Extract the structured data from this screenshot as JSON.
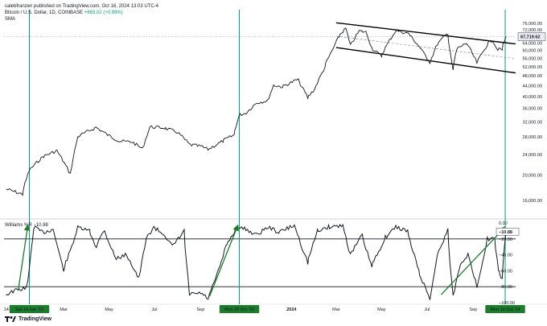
{
  "header": {
    "publisher_line": "calebfranzen published on TradingView.com, Oct 16, 2024 13:03 UTC-4",
    "symbol": "Bitcoin / U.S. Dollar, 1D, COINBASE",
    "change": "+663.02 (+0.99%)",
    "indicator": "SMA"
  },
  "williams": {
    "label": "Williams %R",
    "value": "−10.88"
  },
  "brand": "TradingView",
  "colors": {
    "price_line": "#131722",
    "channel": "#000000",
    "vline": "#089981",
    "arrow": "#1b7d2b",
    "badge_bg": "#1b7d2b",
    "price_badge_bg": "#e8eaf0"
  },
  "chart_data": [
    {
      "type": "line",
      "title": "Bitcoin / U.S. Dollar, 1D, COINBASE",
      "scale": "log",
      "ylim": [
        14000,
        80000
      ],
      "y_ticks": [
        "76,000.00",
        "72,000.00",
        "68,000.00",
        "64,000.00",
        "60,000.00",
        "56,000.00",
        "52,000.00",
        "48,000.00",
        "44,000.00",
        "40,000.00",
        "36,000.00",
        "32,000.00",
        "28,000.00",
        "24,000.00",
        "20,000.00",
        "16,000.00"
      ],
      "x_ticks": [
        "14",
        "Sat 14 Jan '23",
        "Mar",
        "May",
        "Jul",
        "Sep",
        "Mon 23 Oct '23",
        "2024",
        "Mar",
        "May",
        "Jul",
        "Sep",
        "Mon 14 Oct '24"
      ],
      "last_price": "67,719.62",
      "series": [
        {
          "x": [
            "2022-12-14",
            "2023-01-05",
            "2023-01-14",
            "2023-02-01",
            "2023-02-20",
            "2023-03-10",
            "2023-03-20",
            "2023-04-14",
            "2023-05-01",
            "2023-05-15",
            "2023-06-01",
            "2023-06-15",
            "2023-06-25",
            "2023-07-15",
            "2023-08-01",
            "2023-08-17",
            "2023-09-01",
            "2023-09-11",
            "2023-10-01",
            "2023-10-16",
            "2023-10-23",
            "2023-11-01",
            "2023-11-15",
            "2023-12-01",
            "2023-12-08",
            "2023-12-20",
            "2024-01-10",
            "2024-01-23",
            "2024-02-01",
            "2024-02-15",
            "2024-02-28",
            "2024-03-05",
            "2024-03-14",
            "2024-03-20",
            "2024-04-01",
            "2024-04-10",
            "2024-04-18",
            "2024-05-01",
            "2024-05-20",
            "2024-06-07",
            "2024-06-24",
            "2024-07-05",
            "2024-07-15",
            "2024-07-29",
            "2024-08-05",
            "2024-08-10",
            "2024-08-23",
            "2024-09-06",
            "2024-09-20",
            "2024-09-27",
            "2024-10-03",
            "2024-10-10",
            "2024-10-15"
          ],
          "values": [
            17700,
            16900,
            20900,
            23500,
            24800,
            20200,
            28000,
            30500,
            28300,
            27000,
            26800,
            25200,
            30600,
            30300,
            29200,
            26200,
            25800,
            25100,
            27000,
            28500,
            33900,
            34600,
            37800,
            38600,
            44100,
            43500,
            46500,
            39500,
            42600,
            51800,
            62500,
            68000,
            72800,
            62500,
            71200,
            70500,
            61300,
            57000,
            71400,
            69500,
            60300,
            54100,
            63500,
            69900,
            49800,
            60500,
            64000,
            53800,
            63100,
            65800,
            60800,
            60300,
            67719
          ]
        }
      ],
      "annotations": {
        "channel": "descending parallel channel (2024)",
        "sma": "dashed",
        "markers": [
          "Sat 14 Jan '23",
          "Mon 23 Oct '23",
          "Mon 14 Oct '24"
        ]
      }
    },
    {
      "type": "line",
      "title": "Williams %R",
      "ylim": [
        -100,
        0
      ],
      "y_ticks": [
        "0.00",
        "−20.00",
        "−40.00",
        "−60.00",
        "−80.00",
        "−100.00"
      ],
      "hlines": [
        -20,
        -80
      ],
      "current": "−10.88",
      "series": [
        {
          "x": [
            "2022-12-14",
            "2022-12-25",
            "2023-01-08",
            "2023-01-12",
            "2023-01-20",
            "2023-02-01",
            "2023-02-15",
            "2023-03-01",
            "2023-03-10",
            "2023-03-20",
            "2023-04-05",
            "2023-04-14",
            "2023-04-25",
            "2023-05-10",
            "2023-05-25",
            "2023-06-10",
            "2023-06-20",
            "2023-06-30",
            "2023-07-15",
            "2023-07-25",
            "2023-08-10",
            "2023-08-17",
            "2023-09-01",
            "2023-09-11",
            "2023-09-25",
            "2023-10-05",
            "2023-10-20",
            "2023-11-01",
            "2023-11-15",
            "2023-12-01",
            "2023-12-15",
            "2024-01-05",
            "2024-01-15",
            "2024-01-23",
            "2024-02-05",
            "2024-02-20",
            "2024-03-10",
            "2024-03-20",
            "2024-04-05",
            "2024-04-18",
            "2024-05-05",
            "2024-05-20",
            "2024-06-05",
            "2024-06-20",
            "2024-07-05",
            "2024-07-15",
            "2024-07-29",
            "2024-08-05",
            "2024-08-15",
            "2024-08-25",
            "2024-09-06",
            "2024-09-20",
            "2024-09-30",
            "2024-10-05",
            "2024-10-10",
            "2024-10-15"
          ],
          "values": [
            -90,
            -85,
            -82,
            -75,
            -5,
            -12,
            -8,
            -60,
            -35,
            -6,
            -10,
            -30,
            -8,
            -45,
            -40,
            -70,
            -20,
            -5,
            -15,
            -30,
            -10,
            -90,
            -88,
            -95,
            -60,
            -30,
            -5,
            -8,
            -15,
            -5,
            -12,
            -3,
            -30,
            -50,
            -10,
            -5,
            -3,
            -40,
            -15,
            -55,
            -20,
            -5,
            -10,
            -60,
            -95,
            -40,
            -8,
            -92,
            -50,
            -40,
            -80,
            -20,
            -20,
            -60,
            -70,
            -11
          ]
        }
      ]
    }
  ]
}
